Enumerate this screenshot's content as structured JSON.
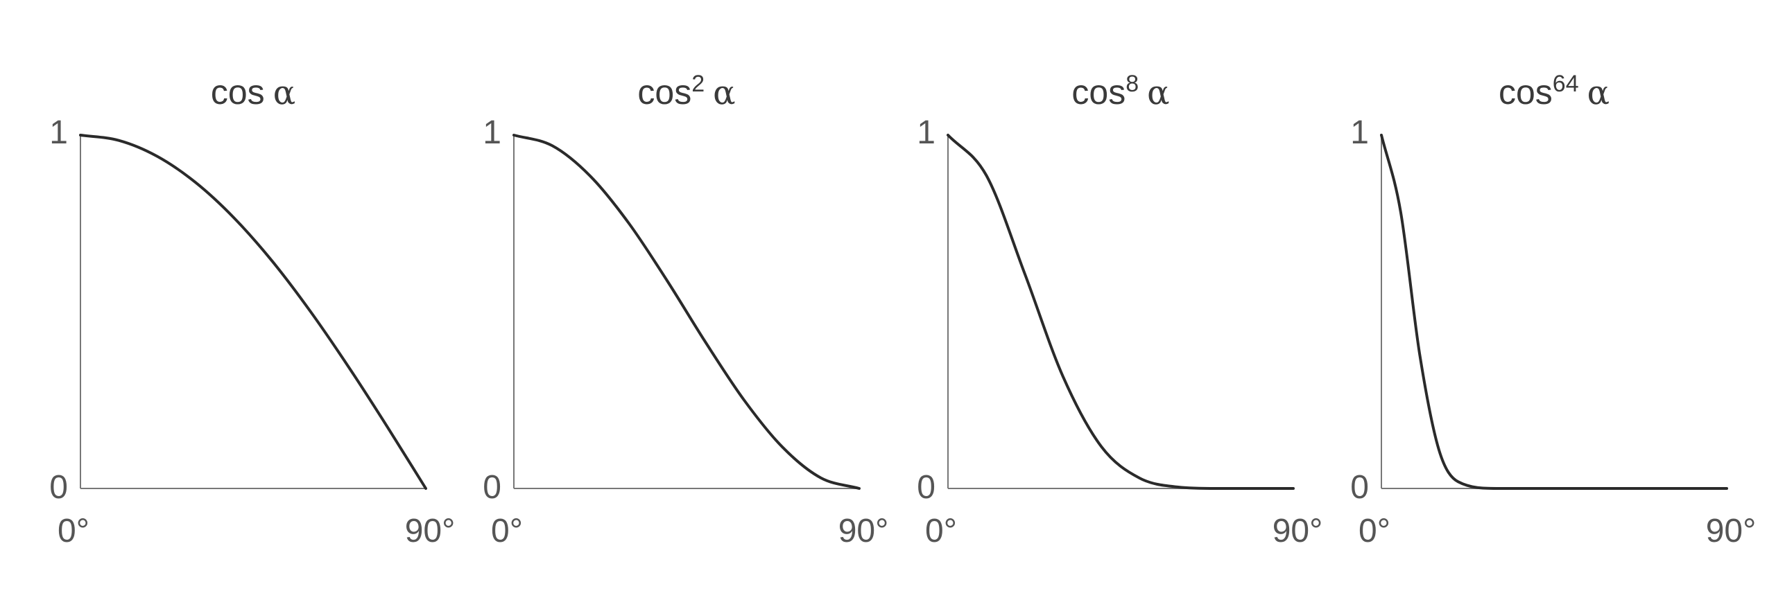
{
  "chart_data": [
    {
      "type": "line",
      "title": {
        "base": "cos",
        "exponent": "",
        "variable": "α"
      },
      "exponent_value": 1,
      "xlim": [
        0,
        90
      ],
      "ylim": [
        0,
        1
      ],
      "x_tick_labels": [
        "0°",
        "90°"
      ],
      "y_tick_labels": [
        "0",
        "1"
      ],
      "x": [
        0,
        10,
        20,
        30,
        40,
        50,
        60,
        70,
        80,
        90
      ],
      "y": [
        1.0,
        0.985,
        0.94,
        0.866,
        0.766,
        0.643,
        0.5,
        0.342,
        0.174,
        0.0
      ]
    },
    {
      "type": "line",
      "title": {
        "base": "cos",
        "exponent": "2",
        "variable": "α"
      },
      "exponent_value": 2,
      "xlim": [
        0,
        90
      ],
      "ylim": [
        0,
        1
      ],
      "x_tick_labels": [
        "0°",
        "90°"
      ],
      "y_tick_labels": [
        "0",
        "1"
      ],
      "x": [
        0,
        10,
        20,
        30,
        40,
        50,
        60,
        70,
        80,
        90
      ],
      "y": [
        1.0,
        0.97,
        0.883,
        0.75,
        0.587,
        0.413,
        0.25,
        0.117,
        0.03,
        0.0
      ]
    },
    {
      "type": "line",
      "title": {
        "base": "cos",
        "exponent": "8",
        "variable": "α"
      },
      "exponent_value": 8,
      "xlim": [
        0,
        90
      ],
      "ylim": [
        0,
        1
      ],
      "x_tick_labels": [
        "0°",
        "90°"
      ],
      "y_tick_labels": [
        "0",
        "1"
      ],
      "x": [
        0,
        10,
        20,
        30,
        40,
        50,
        60,
        70,
        80,
        90
      ],
      "y": [
        1.0,
        0.886,
        0.608,
        0.316,
        0.118,
        0.029,
        0.004,
        0.0,
        0.0,
        0.0
      ]
    },
    {
      "type": "line",
      "title": {
        "base": "cos",
        "exponent": "64",
        "variable": "α"
      },
      "exponent_value": 64,
      "xlim": [
        0,
        90
      ],
      "ylim": [
        0,
        1
      ],
      "x_tick_labels": [
        "0°",
        "90°"
      ],
      "y_tick_labels": [
        "0",
        "1"
      ],
      "x": [
        0,
        5,
        10,
        15,
        20,
        30,
        90
      ],
      "y": [
        1.0,
        0.784,
        0.378,
        0.109,
        0.019,
        0.0,
        0.0
      ]
    }
  ]
}
